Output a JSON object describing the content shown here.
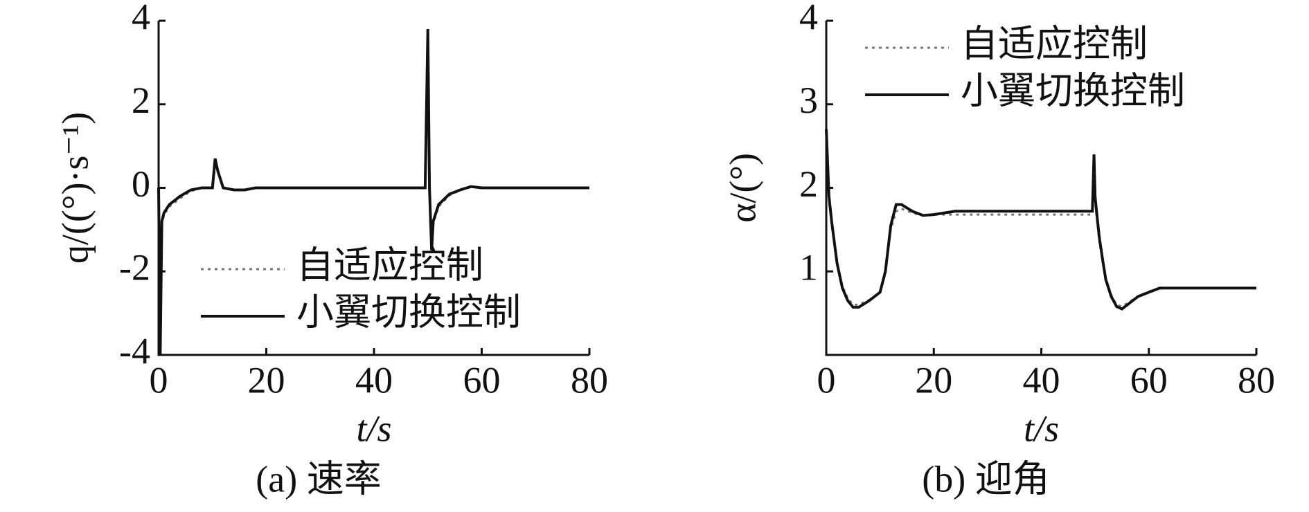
{
  "chart_data": [
    {
      "type": "line",
      "caption": "(a) 速率",
      "x_label": "t/s",
      "y_label": "q/((°)·s⁻¹)",
      "xlim": [
        0,
        80
      ],
      "xticks": [
        0,
        20,
        40,
        60,
        80
      ],
      "ylim": [
        -4,
        4
      ],
      "yticks": [
        -4,
        -2,
        0,
        2,
        4
      ],
      "legend": "lower center",
      "series": [
        {
          "name": "自适应控制",
          "color": "#777777",
          "style": "dotted",
          "x": [
            0,
            0.3,
            0.6,
            1,
            2,
            4,
            6,
            8,
            10,
            10.6,
            11.2,
            12,
            14,
            16,
            18,
            20,
            30,
            40,
            49.5,
            50,
            50.3,
            50.7,
            51,
            52,
            54,
            56,
            58,
            60,
            70,
            80
          ],
          "values": [
            0,
            -3.6,
            -0.9,
            -0.65,
            -0.45,
            -0.25,
            -0.08,
            0,
            0,
            0.6,
            0.35,
            0,
            -0.05,
            -0.05,
            0,
            0,
            0,
            0,
            0,
            3.4,
            0,
            -1.3,
            -0.85,
            -0.45,
            -0.18,
            -0.06,
            0.02,
            0,
            0,
            0
          ]
        },
        {
          "name": "小翼切换控制",
          "color": "#111111",
          "style": "solid",
          "x": [
            0,
            0.3,
            0.6,
            1,
            2,
            4,
            6,
            8,
            10,
            10.5,
            11,
            12,
            14,
            16,
            18,
            20,
            30,
            40,
            49.5,
            50,
            50.3,
            50.7,
            51,
            52,
            54,
            56,
            58,
            60,
            70,
            80
          ],
          "values": [
            0,
            -4,
            -0.8,
            -0.6,
            -0.4,
            -0.2,
            -0.05,
            0,
            0,
            0.7,
            0.4,
            0,
            -0.05,
            -0.05,
            0,
            0,
            0,
            0,
            0,
            3.8,
            0,
            -1.5,
            -0.8,
            -0.4,
            -0.15,
            -0.05,
            0.03,
            0,
            0,
            0
          ]
        }
      ]
    },
    {
      "type": "line",
      "caption": "(b) 迎角",
      "x_label": "t/s",
      "y_label": "α/(°)",
      "xlim": [
        0,
        80
      ],
      "xticks": [
        0,
        20,
        40,
        60,
        80
      ],
      "ylim": [
        0,
        4
      ],
      "yticks": [
        1,
        2,
        3,
        4
      ],
      "legend": "upper left",
      "series": [
        {
          "name": "自适应控制",
          "color": "#777777",
          "style": "dotted",
          "x": [
            0,
            0.5,
            1,
            2,
            3,
            4,
            5,
            6,
            8,
            10,
            11,
            12,
            13,
            14,
            16,
            18,
            20,
            30,
            40,
            49.5,
            49.8,
            50,
            50.3,
            50.8,
            51.5,
            52,
            53,
            54,
            55,
            56,
            58,
            60,
            62,
            70,
            80
          ],
          "values": [
            2.6,
            1.9,
            1.55,
            1.1,
            0.82,
            0.68,
            0.6,
            0.6,
            0.66,
            0.75,
            0.98,
            1.5,
            1.72,
            1.75,
            1.7,
            1.67,
            1.68,
            1.68,
            1.68,
            1.68,
            2.2,
            1.85,
            1.65,
            1.35,
            1.1,
            0.92,
            0.72,
            0.6,
            0.58,
            0.62,
            0.7,
            0.76,
            0.8,
            0.8,
            0.8
          ]
        },
        {
          "name": "小翼切换控制",
          "color": "#111111",
          "style": "solid",
          "x": [
            0,
            0.5,
            1,
            2,
            3,
            4,
            5,
            6,
            8,
            10,
            11,
            12,
            13,
            14,
            16,
            18,
            20,
            24,
            30,
            40,
            49.5,
            49.8,
            50,
            50.3,
            50.8,
            51.5,
            52,
            53,
            54,
            55,
            56,
            58,
            60,
            62,
            70,
            80
          ],
          "values": [
            2.7,
            1.9,
            1.6,
            1.1,
            0.8,
            0.65,
            0.57,
            0.57,
            0.65,
            0.75,
            1.0,
            1.55,
            1.8,
            1.8,
            1.72,
            1.67,
            1.68,
            1.72,
            1.72,
            1.72,
            1.72,
            2.4,
            1.9,
            1.7,
            1.4,
            1.1,
            0.9,
            0.7,
            0.58,
            0.55,
            0.6,
            0.7,
            0.75,
            0.8,
            0.8,
            0.8
          ]
        }
      ]
    }
  ]
}
